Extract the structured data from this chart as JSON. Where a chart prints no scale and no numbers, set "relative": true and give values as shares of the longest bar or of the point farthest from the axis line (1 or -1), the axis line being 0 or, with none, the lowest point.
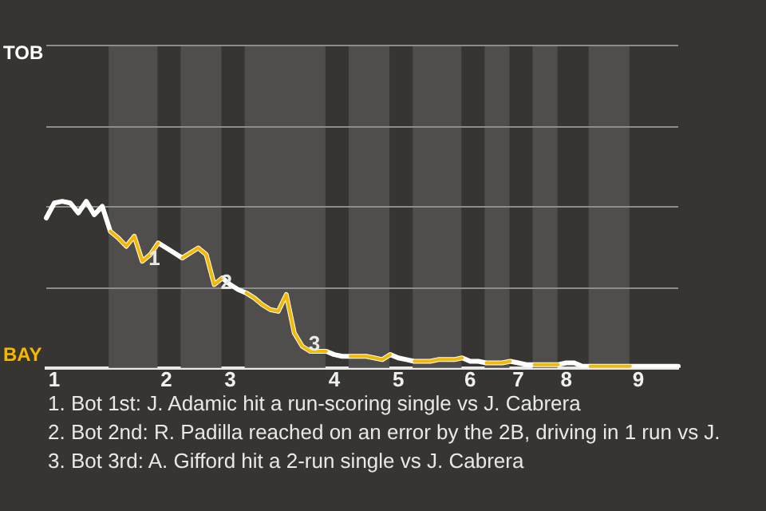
{
  "chart_data": {
    "type": "line",
    "relative": true,
    "categories": [
      null,
      "1",
      null,
      null,
      null,
      null,
      null,
      null,
      null,
      null,
      null,
      null,
      null,
      null,
      null,
      "2",
      null,
      null,
      null,
      null,
      null,
      null,
      null,
      "3",
      null,
      null,
      null,
      null,
      null,
      null,
      null,
      null,
      null,
      null,
      null,
      null,
      "4",
      null,
      null,
      null,
      null,
      null,
      null,
      null,
      "5",
      null,
      null,
      null,
      null,
      null,
      null,
      null,
      null,
      "6",
      null,
      null,
      null,
      null,
      null,
      "7",
      null,
      null,
      null,
      null,
      null,
      "8",
      null,
      null,
      null,
      null,
      null,
      null,
      null,
      null,
      "9",
      null,
      null,
      null,
      null,
      null
    ],
    "series": [
      {
        "color": "#ffffff",
        "values": [
          0.9,
          0.99,
          1,
          0.99,
          0.93,
          1,
          0.92,
          0.97,
          0.82,
          0.78,
          0.73,
          0.79,
          0.64,
          0.68,
          0.75,
          0.72,
          0.69,
          0.66,
          0.69,
          0.72,
          0.68,
          0.5,
          0.54,
          0.5,
          0.47,
          0.45,
          0.42,
          0.38,
          0.35,
          0.34,
          0.44,
          0.21,
          0.13,
          0.1,
          0.1,
          0.1,
          0.08,
          0.07,
          0.07,
          0.07,
          0.07,
          0.06,
          0.05,
          0.08,
          0.06,
          0.05,
          0.04,
          0.04,
          0.04,
          0.05,
          0.05,
          0.05,
          0.06,
          0.04,
          0.04,
          0.03,
          0.03,
          0.03,
          0.04,
          0.03,
          0.02,
          0.02,
          0.02,
          0.02,
          0.02,
          0.03,
          0.03,
          0.01,
          0.01,
          0.01,
          0.01,
          0.01,
          0.01,
          0.01,
          0.01,
          0.01,
          0.01,
          0.01,
          0.01,
          0.01
        ]
      },
      {
        "color": "#f5b800",
        "values": [
          null,
          null,
          null,
          null,
          null,
          null,
          null,
          null,
          0.82,
          0.78,
          0.73,
          0.79,
          0.64,
          0.68,
          0.75,
          null,
          null,
          0.66,
          0.69,
          0.72,
          0.68,
          0.5,
          0.54,
          null,
          null,
          0.45,
          0.42,
          0.38,
          0.35,
          0.34,
          0.44,
          0.21,
          0.13,
          0.1,
          0.1,
          0.1,
          null,
          null,
          0.07,
          0.07,
          0.07,
          0.06,
          0.05,
          0.08,
          null,
          null,
          0.04,
          0.04,
          0.04,
          0.05,
          0.05,
          0.05,
          0.06,
          null,
          null,
          0.03,
          0.03,
          0.03,
          0.04,
          null,
          null,
          0.02,
          0.02,
          0.02,
          0.02,
          null,
          null,
          null,
          0.01,
          0.01,
          0.01,
          0.01,
          0.01,
          0.01,
          null,
          null,
          null,
          null,
          null,
          null
        ]
      }
    ],
    "ref_lines": [
      {
        "axis": "y",
        "value": 0.48,
        "color": "#8c8c8a"
      },
      {
        "axis": "y",
        "value": 0.97,
        "color": "#8c8c8a"
      },
      {
        "axis": "y",
        "value": 1.45,
        "color": "#8c8c8a"
      },
      {
        "axis": "y",
        "value": 1.94,
        "color": "#8c8c8a"
      }
    ],
    "annotations": [
      "TOB",
      "BAY",
      {
        "text": "1",
        "y": 0.64
      },
      {
        "text": "2",
        "y": 0.5
      },
      {
        "text": "3",
        "y": 0.13
      },
      "1. Bot 1st: J. Adamic hit a run-scoring single vs J. Cabrera",
      "2. Bot 2nd: R. Padilla reached on an error by the 2B, driving in 1 run vs J.",
      "3. Bot 3rd: A. Gifford hit a 2-run single vs J. Cabrera"
    ]
  }
}
